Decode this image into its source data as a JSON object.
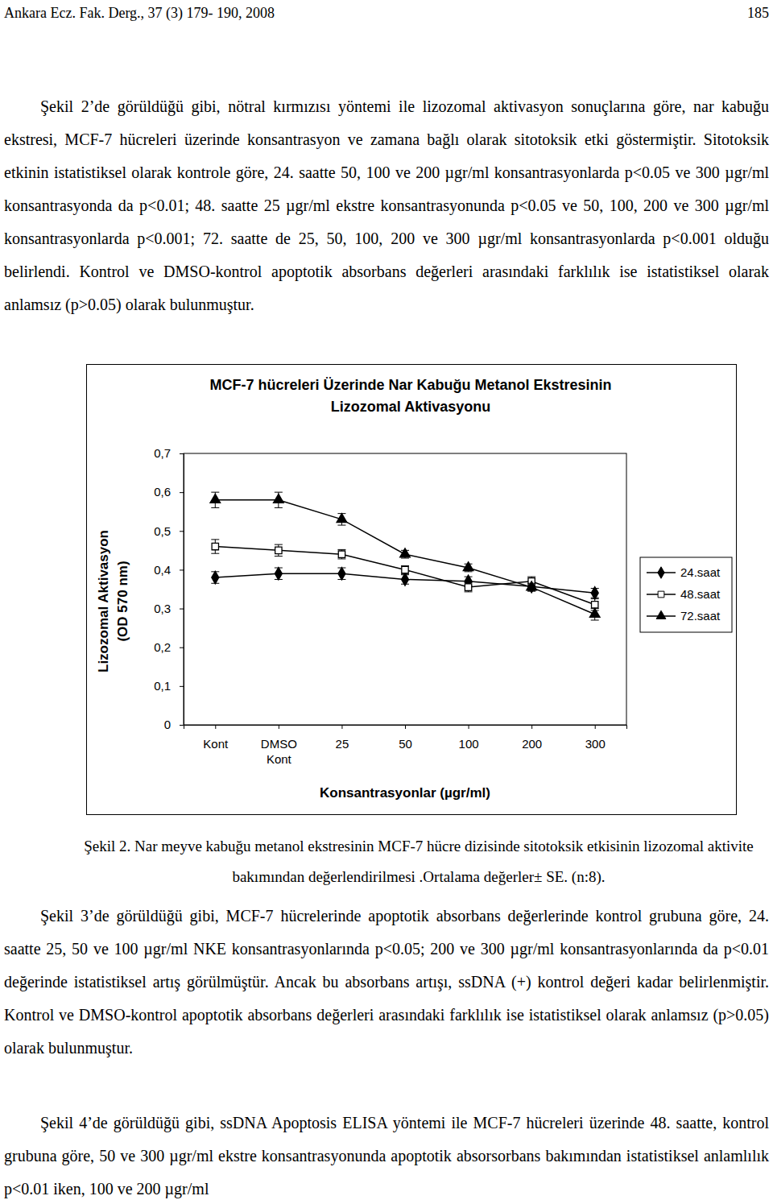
{
  "header": {
    "journal": "Ankara Ecz. Fak. Derg., 37 (3) 179- 190, 2008",
    "page": "185"
  },
  "paragraphs": [
    "Şekil 2’de görüldüğü gibi, nötral kırmızısı yöntemi ile lizozomal aktivasyon sonuçlarına göre, nar kabuğu ekstresi, MCF-7 hücreleri üzerinde konsantrasyon ve zamana bağlı olarak sitotoksik etki göstermiştir. Sitotoksik etkinin istatistiksel olarak kontrole göre, 24. saatte 50, 100 ve 200 µgr/ml konsantrasyonlarda p<0.05 ve 300 µgr/ml konsantrasyonda da p<0.01; 48. saatte 25 µgr/ml ekstre konsantrasyonunda p<0.05 ve 50, 100, 200 ve 300 µgr/ml konsantrasyonlarda p<0.001; 72. saatte de 25, 50, 100, 200 ve 300 µgr/ml konsantrasyonlarda p<0.001 olduğu belirlendi. Kontrol ve DMSO-kontrol apoptotik absorbans değerleri arasındaki farklılık ise istatistiksel olarak anlamsız (p>0.05) olarak bulunmuştur.",
    "Şekil 3’de görüldüğü gibi, MCF-7 hücrelerinde apoptotik absorbans değerlerinde kontrol grubuna göre, 24. saatte 25, 50 ve 100 µgr/ml NKE konsantrasyonlarında p<0.05; 200 ve 300 µgr/ml konsantrasyonlarında da p<0.01 değerinde istatistiksel artış görülmüştür. Ancak bu absorbans artışı, ssDNA (+) kontrol değeri kadar belirlenmiştir. Kontrol ve DMSO-kontrol apoptotik absorbans değerleri arasındaki farklılık ise istatistiksel olarak anlamsız (p>0.05) olarak bulunmuştur.",
    "Şekil 4’de görüldüğü gibi, ssDNA Apoptosis ELISA yöntemi ile MCF-7 hücreleri üzerinde 48. saatte, kontrol grubuna göre, 50 ve 300 µgr/ml ekstre konsantrasyonunda apoptotik absorsorbans bakımından istatistiksel anlamlılık p<0.01 iken, 100 ve 200 µgr/ml"
  ],
  "caption": "Şekil 2. Nar meyve kabuğu metanol ekstresinin MCF-7 hücre dizisinde sitotoksik etkisinin lizozomal aktivite bakımından değerlendirilmesi .Ortalama değerler± SE. (n:8).",
  "chart_data": {
    "type": "line",
    "title": "MCF-7 hücreleri Üzerinde Nar Kabuğu Metanol Ekstresinin Lizozomal Aktivasyonu",
    "x_label": "Konsantrasyonlar (µgr/ml)",
    "y_label": "Lizozomal Aktivasyon (OD 570 nm)",
    "categories": [
      "Kont",
      "DMSO Kont",
      "25",
      "50",
      "100",
      "200",
      "300"
    ],
    "series": [
      {
        "name": "24.saat",
        "color": "#000000",
        "marker": "diamond",
        "values": [
          0.38,
          0.39,
          0.39,
          0.375,
          0.37,
          0.357,
          0.34
        ],
        "errors": [
          0.015,
          0.015,
          0.015,
          0.012,
          0.012,
          0.012,
          0.012
        ]
      },
      {
        "name": "48.saat",
        "color": "#000000",
        "marker": "open-square",
        "values": [
          0.46,
          0.45,
          0.44,
          0.4,
          0.355,
          0.37,
          0.31
        ],
        "errors": [
          0.018,
          0.015,
          0.012,
          0.01,
          0.012,
          0.012,
          0.015
        ]
      },
      {
        "name": "72.saat",
        "color": "#000000",
        "marker": "triangle",
        "values": [
          0.58,
          0.58,
          0.53,
          0.44,
          0.405,
          0.355,
          0.285
        ],
        "errors": [
          0.02,
          0.02,
          0.015,
          0.01,
          0.01,
          0.01,
          0.015
        ]
      }
    ],
    "ylim": [
      0,
      0.7
    ],
    "yticks": [
      0,
      {
        "value": 0.1,
        "label": "0,1"
      },
      {
        "value": 0.2,
        "label": "0,2"
      },
      {
        "value": 0.3,
        "label": "0,3"
      },
      {
        "value": 0.4,
        "label": "0,4"
      },
      {
        "value": 0.5,
        "label": "0,5"
      },
      {
        "value": 0.6,
        "label": "0,6"
      },
      {
        "value": 0.7,
        "label": "0,7"
      }
    ],
    "grid": false,
    "legend": "right"
  }
}
